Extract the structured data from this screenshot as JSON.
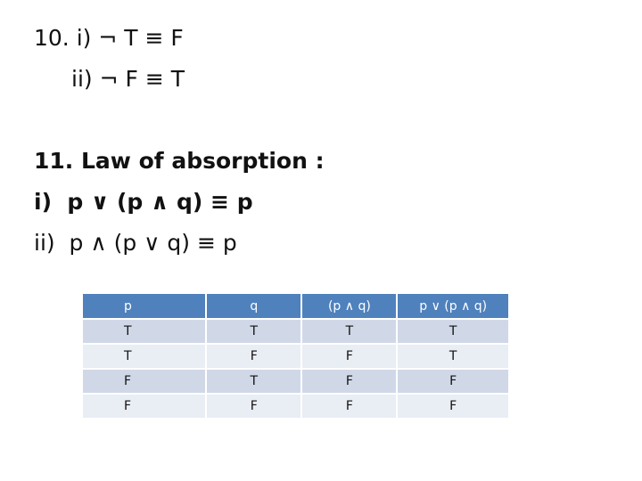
{
  "lines": {
    "l1": "10. i) ¬ T ≡ F",
    "l2": "ii) ¬ F ≡ T",
    "l3": "11. Law of absorption :",
    "l4": "i)  p ∨ (p ∧ q) ≡ p",
    "l5": "ii)  p ∧ (p ∨ q) ≡ p"
  },
  "table": {
    "headers": [
      "p",
      "q",
      "(p ∧ q)",
      "p ∨ (p ∧ q)"
    ],
    "rows": [
      [
        "T",
        "T",
        "T",
        "T"
      ],
      [
        "T",
        "F",
        "F",
        "T"
      ],
      [
        "F",
        "T",
        "F",
        "F"
      ],
      [
        "F",
        "F",
        "F",
        "F"
      ]
    ]
  }
}
